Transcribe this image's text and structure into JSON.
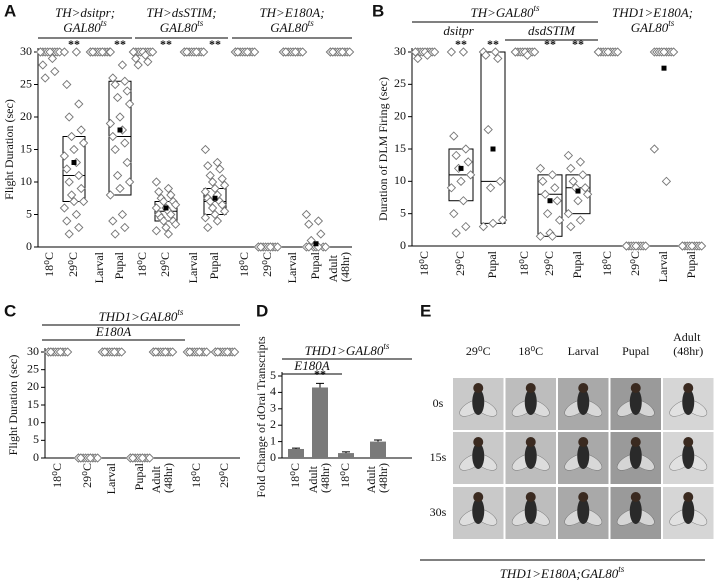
{
  "chart_data": [
    {
      "type": "box",
      "panel": "A",
      "ylabel": "Flight Duration (sec)",
      "ylim": [
        0,
        30
      ],
      "yticks": [
        0,
        5,
        10,
        15,
        20,
        25,
        30
      ],
      "headers": [
        {
          "lines": [
            {
              "text": "TH>dsitpr;"
            },
            {
              "text": "GAL80",
              "sup": "ts"
            }
          ]
        },
        {
          "lines": [
            {
              "text": "TH>dsSTIM;"
            },
            {
              "text": "GAL80",
              "sup": "ts"
            }
          ]
        },
        {
          "lines": [
            {
              "text": "TH>E180A;"
            },
            {
              "text": "GAL80",
              "sup": "ts"
            }
          ]
        }
      ],
      "groups": [
        {
          "label": "18⁰C",
          "points": [
            30,
            30,
            30,
            30,
            30,
            30,
            30,
            30,
            30,
            30,
            29,
            28,
            27,
            26
          ]
        },
        {
          "label": "29⁰C",
          "sig": "**",
          "points": [
            30,
            30,
            25,
            22,
            20,
            18,
            17,
            16,
            15,
            14,
            13,
            12,
            11,
            10,
            9,
            8,
            7,
            7,
            6,
            5,
            4,
            3,
            2
          ],
          "box": [
            7,
            17
          ],
          "median": 11,
          "mean": 13
        },
        {
          "label": "Larval",
          "points": [
            30,
            30,
            30,
            30,
            30,
            30,
            30,
            30,
            30,
            30,
            30,
            30
          ]
        },
        {
          "label": "Pupal",
          "sig": "**",
          "points": [
            30,
            28,
            26,
            25.5,
            25,
            24,
            23,
            22,
            20,
            19,
            18,
            17,
            16,
            15,
            13,
            11,
            10,
            9,
            8,
            5,
            4,
            3,
            2
          ],
          "box": [
            8,
            25.5
          ],
          "median": 17,
          "mean": 18
        },
        {
          "label": "18⁰C",
          "points": [
            30,
            30,
            30,
            30,
            30,
            30,
            30,
            30,
            30,
            30,
            29.5,
            29,
            28.5,
            28
          ]
        },
        {
          "label": "29⁰C",
          "sig": "**",
          "points": [
            10,
            9,
            8.5,
            8,
            7.5,
            7,
            7,
            6.5,
            6,
            6,
            5.5,
            5,
            5,
            4.5,
            4,
            4,
            3.5,
            3,
            2.5,
            2
          ],
          "box": [
            4,
            7
          ],
          "median": 5.5,
          "mean": 6
        },
        {
          "label": "Larval",
          "points": [
            30,
            30,
            30,
            30,
            30,
            30,
            30,
            30,
            30,
            30,
            30,
            30
          ]
        },
        {
          "label": "Pupal",
          "sig": "**",
          "points": [
            15,
            13,
            12.5,
            12,
            11,
            10.5,
            10,
            9.5,
            9,
            8.5,
            8,
            7.5,
            7,
            7,
            6.5,
            6,
            5.5,
            5,
            4.5,
            4,
            3
          ],
          "box": [
            5,
            9
          ],
          "median": 7,
          "mean": 7.5
        },
        {
          "label": "18⁰C",
          "points": [
            30,
            30,
            30,
            30,
            30,
            30,
            30,
            30,
            30,
            30,
            30,
            30
          ]
        },
        {
          "label": "29⁰C",
          "points": [
            0,
            0,
            0,
            0,
            0,
            0,
            0,
            0,
            0,
            0,
            0,
            0
          ]
        },
        {
          "label": "Larval",
          "points": [
            30,
            30,
            30,
            30,
            30,
            30,
            30,
            30,
            30,
            30,
            30,
            30
          ]
        },
        {
          "label": "Pupal",
          "points": [
            5,
            4,
            3.5,
            2,
            1,
            0,
            0,
            0,
            0,
            0,
            0,
            0
          ],
          "mean": 0.5
        },
        {
          "label": "Adult (48hr)",
          "points": [
            30,
            30,
            30,
            30,
            30,
            30,
            30,
            30,
            30,
            30,
            30,
            30
          ]
        }
      ]
    },
    {
      "type": "box",
      "panel": "B",
      "ylabel": "Duration of DLM Firing (sec)",
      "ylim": [
        0,
        30
      ],
      "yticks": [
        0,
        5,
        10,
        15,
        20,
        25,
        30
      ],
      "headers": [
        {
          "lines": [
            {
              "text": "TH>GAL80",
              "sup": "ts"
            }
          ]
        },
        {
          "lines": [
            {
              "text": "dsitpr"
            }
          ]
        },
        {
          "lines": [
            {
              "text": "dsdSTIM"
            }
          ]
        },
        {
          "lines": [
            {
              "text": "THD1>E180A;"
            },
            {
              "text": "GAL80",
              "sup": "ts"
            }
          ]
        }
      ],
      "groups": [
        {
          "label": "18⁰C",
          "points": [
            30,
            30,
            30,
            30,
            30,
            30,
            30,
            30,
            30,
            30,
            29.5,
            29
          ]
        },
        {
          "label": "29⁰C",
          "sig": "**",
          "points": [
            30,
            30,
            17,
            15,
            14,
            13,
            12,
            11,
            10,
            9,
            7,
            5,
            3,
            2
          ],
          "box": [
            7,
            15
          ],
          "median": 11,
          "mean": 12
        },
        {
          "label": "Pupal",
          "sig": "**",
          "points": [
            30,
            30,
            29.5,
            29,
            18,
            10,
            9,
            4,
            3.5,
            3
          ],
          "box": [
            3.5,
            30
          ],
          "median": 10,
          "mean": 15
        },
        {
          "label": "18⁰C",
          "points": [
            30,
            30,
            30,
            30,
            30,
            30,
            30,
            30,
            30,
            30,
            29.5
          ]
        },
        {
          "label": "29⁰C",
          "sig": "**",
          "points": [
            12,
            11,
            10,
            9,
            8,
            7,
            5,
            4,
            2,
            1.5,
            1.5
          ],
          "box": [
            1.5,
            11
          ],
          "median": 8,
          "mean": 7
        },
        {
          "label": "Pupal",
          "sig": "**",
          "points": [
            14,
            13,
            12,
            11,
            10,
            9,
            9,
            8,
            7,
            5,
            4,
            3
          ],
          "box": [
            5,
            11
          ],
          "median": 9,
          "mean": 8.5
        },
        {
          "label": "18⁰C",
          "points": [
            30,
            30,
            30,
            30,
            30,
            30,
            30,
            30,
            30,
            30
          ]
        },
        {
          "label": "29⁰C",
          "points": [
            0,
            0,
            0,
            0,
            0,
            0,
            0,
            0,
            0,
            0
          ]
        },
        {
          "label": "Larval",
          "points": [
            30,
            30,
            30,
            30,
            30,
            30,
            30,
            30,
            30,
            15,
            10
          ],
          "mean": 27.5
        },
        {
          "label": "Pupal",
          "points": [
            0,
            0,
            0,
            0,
            0,
            0,
            0,
            0,
            0,
            0
          ]
        }
      ]
    },
    {
      "type": "box",
      "panel": "C",
      "ylabel": "Flight Duration (sec)",
      "ylim": [
        0,
        30
      ],
      "yticks": [
        0,
        5,
        10,
        15,
        20,
        25,
        30
      ],
      "headers": [
        {
          "lines": [
            {
              "text": "THD1>GAL80",
              "sup": "ts"
            }
          ]
        },
        {
          "lines": [
            {
              "text": "E180A"
            }
          ]
        }
      ],
      "groups": [
        {
          "label": "18⁰C",
          "points": [
            30,
            30,
            30,
            30,
            30,
            30,
            30,
            30,
            30,
            30,
            30,
            30
          ]
        },
        {
          "label": "29⁰C",
          "points": [
            0,
            0,
            0,
            0,
            0,
            0,
            0,
            0,
            0,
            0,
            0,
            0
          ]
        },
        {
          "label": "Larval",
          "points": [
            30,
            30,
            30,
            30,
            30,
            30,
            30,
            30,
            30,
            30,
            30,
            30
          ]
        },
        {
          "label": "Pupal",
          "points": [
            0,
            0,
            0,
            0,
            0,
            0,
            0,
            0,
            0,
            0,
            0,
            0
          ]
        },
        {
          "label": "Adult (48hr)",
          "points": [
            30,
            30,
            30,
            30,
            30,
            30,
            30,
            30,
            30,
            30,
            30,
            30
          ]
        },
        {
          "label": "18⁰C",
          "points": [
            30,
            30,
            30,
            30,
            30,
            30,
            30,
            30,
            30,
            30,
            30,
            30
          ]
        },
        {
          "label": "29⁰C",
          "points": [
            30,
            30,
            30,
            30,
            30,
            30,
            30,
            30,
            30,
            30,
            30,
            30
          ]
        }
      ]
    },
    {
      "type": "bar",
      "panel": "D",
      "ylabel": "Fold Change of dOrai Transcripts",
      "ylim": [
        0,
        5
      ],
      "yticks": [
        0,
        1,
        2,
        3,
        4,
        5
      ],
      "headers": [
        {
          "lines": [
            {
              "text": "THD1>GAL80",
              "sup": "ts"
            }
          ]
        },
        {
          "lines": [
            {
              "text": "E180A"
            }
          ]
        }
      ],
      "color": "#7a7a7a",
      "categories": [
        "18⁰C",
        "Adult (48hr)",
        "18⁰C",
        "Adult (48hr)"
      ],
      "values": [
        0.55,
        4.3,
        0.3,
        1.0
      ],
      "errors": [
        0.05,
        0.25,
        0.07,
        0.1
      ],
      "sig": [
        null,
        "**",
        null,
        null
      ]
    }
  ],
  "photo_panel": {
    "panel": "E",
    "columns": [
      "29⁰C",
      "18⁰C",
      "Larval",
      "Pupal",
      "Adult (48hr)"
    ],
    "rows": [
      "0s",
      "15s",
      "30s"
    ],
    "caption": {
      "text": "THD1>E180A;GAL80",
      "sup": "ts"
    }
  }
}
